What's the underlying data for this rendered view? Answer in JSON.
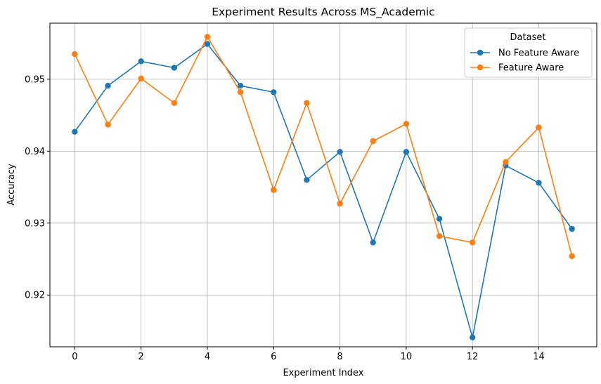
{
  "chart_data": {
    "type": "line",
    "title": "Experiment Results Across MS_Academic",
    "xlabel": "Experiment Index",
    "ylabel": "Accuracy",
    "x": [
      0,
      1,
      2,
      3,
      4,
      5,
      6,
      7,
      8,
      9,
      10,
      11,
      12,
      13,
      14,
      15
    ],
    "xlim": [
      -0.75,
      15.75
    ],
    "ylim": [
      0.9128,
      0.9578
    ],
    "xticks": [
      0,
      2,
      4,
      6,
      8,
      10,
      12,
      14
    ],
    "xtick_labels": [
      "0",
      "2",
      "4",
      "6",
      "8",
      "10",
      "12",
      "14"
    ],
    "yticks": [
      0.92,
      0.93,
      0.94,
      0.95
    ],
    "ytick_labels": [
      "0.92",
      "0.93",
      "0.94",
      "0.95"
    ],
    "grid": true,
    "legend": {
      "title": "Dataset",
      "placement": "top-right"
    },
    "series": [
      {
        "name": "No Feature Aware",
        "color": "#1f77b4",
        "marker": "circle",
        "values": [
          0.9427,
          0.9491,
          0.9525,
          0.9516,
          0.9549,
          0.9491,
          0.9482,
          0.936,
          0.9399,
          0.9273,
          0.9399,
          0.9306,
          0.9141,
          0.938,
          0.9356,
          0.9292
        ]
      },
      {
        "name": "Feature Aware",
        "color": "#ff7f0e",
        "marker": "circle",
        "values": [
          0.9535,
          0.9437,
          0.9501,
          0.9467,
          0.9559,
          0.9482,
          0.9346,
          0.9467,
          0.9327,
          0.9414,
          0.9438,
          0.9282,
          0.9273,
          0.9385,
          0.9433,
          0.9254
        ]
      }
    ]
  }
}
